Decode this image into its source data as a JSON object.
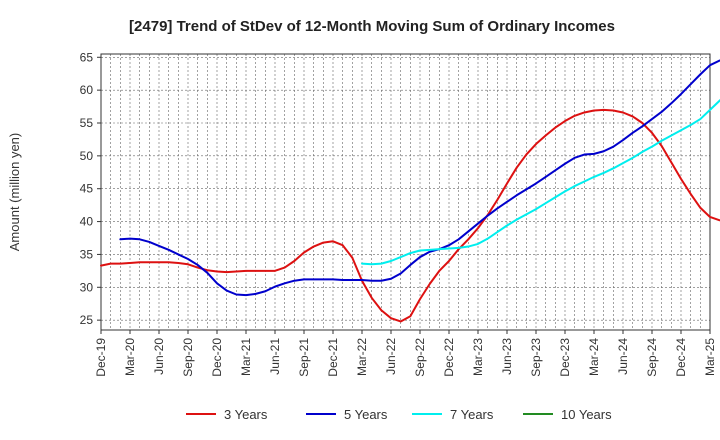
{
  "chart_data": {
    "type": "line",
    "title": "[2479]  Trend of StDev of 12-Month Moving Sum of Ordinary Incomes",
    "xlabel": "",
    "ylabel": "Amount (million yen)",
    "ylim": [
      23.5,
      65.5
    ],
    "y_ticks": [
      25,
      30,
      35,
      40,
      45,
      50,
      55,
      60,
      65
    ],
    "x_ticks": [
      "Dec-19",
      "Mar-20",
      "Jun-20",
      "Sep-20",
      "Dec-20",
      "Mar-21",
      "Jun-21",
      "Sep-21",
      "Dec-21",
      "Mar-22",
      "Jun-22",
      "Sep-22",
      "Dec-22",
      "Mar-23",
      "Jun-23",
      "Sep-23",
      "Dec-23",
      "Mar-24",
      "Jun-24",
      "Sep-24",
      "Dec-24",
      "Mar-25"
    ],
    "grid": true,
    "legend_position": "bottom",
    "series": [
      {
        "name": "3 Years",
        "color": "#dd1111",
        "start_index": 0,
        "values": [
          33.3,
          33.6,
          33.6,
          33.7,
          33.8,
          33.8,
          33.8,
          33.8,
          33.7,
          33.5,
          33.0,
          32.6,
          32.4,
          32.3,
          32.4,
          32.5,
          32.5,
          32.5,
          32.5,
          33.0,
          34.0,
          35.3,
          36.2,
          36.8,
          37.0,
          36.4,
          34.5,
          31.0,
          28.4,
          26.5,
          25.3,
          24.8,
          25.6,
          28.2,
          30.5,
          32.5,
          34.0,
          35.8,
          37.3,
          39.0,
          41.0,
          43.3,
          45.8,
          48.2,
          50.2,
          51.8,
          53.1,
          54.3,
          55.3,
          56.1,
          56.6,
          56.9,
          57.0,
          56.9,
          56.6,
          56.0,
          55.0,
          53.5,
          51.5,
          49.0,
          46.5,
          44.2,
          42.1,
          40.7,
          40.2,
          40.6
        ]
      },
      {
        "name": "5 Years",
        "color": "#0000cc",
        "start_index": 2,
        "values": [
          37.3,
          37.4,
          37.3,
          36.9,
          36.3,
          35.7,
          35.0,
          34.3,
          33.4,
          32.2,
          30.6,
          29.5,
          28.9,
          28.8,
          29.0,
          29.4,
          30.1,
          30.6,
          31.0,
          31.2,
          31.2,
          31.2,
          31.2,
          31.1,
          31.1,
          31.1,
          31.0,
          31.0,
          31.3,
          32.1,
          33.4,
          34.6,
          35.4,
          35.8,
          36.4,
          37.3,
          38.5,
          39.7,
          40.9,
          42.0,
          43.0,
          44.0,
          44.9,
          45.8,
          46.8,
          47.8,
          48.8,
          49.7,
          50.2,
          50.3,
          50.7,
          51.4,
          52.4,
          53.5,
          54.5,
          55.6,
          56.7,
          58.0,
          59.4,
          60.9,
          62.4,
          63.8,
          64.5
        ]
      },
      {
        "name": "7 Years",
        "color": "#00eeee",
        "start_index": 27,
        "values": [
          33.6,
          33.5,
          33.6,
          34.0,
          34.6,
          35.2,
          35.6,
          35.7,
          35.8,
          35.9,
          36.0,
          36.2,
          36.6,
          37.4,
          38.4,
          39.4,
          40.3,
          41.1,
          41.9,
          42.8,
          43.7,
          44.6,
          45.4,
          46.1,
          46.8,
          47.4,
          48.1,
          48.9,
          49.7,
          50.6,
          51.4,
          52.3,
          53.1,
          53.9,
          54.7,
          55.6,
          57.0,
          58.4,
          60.0
        ]
      },
      {
        "name": "10 Years",
        "color": "#228B22",
        "start_index": 0,
        "values": []
      }
    ]
  }
}
